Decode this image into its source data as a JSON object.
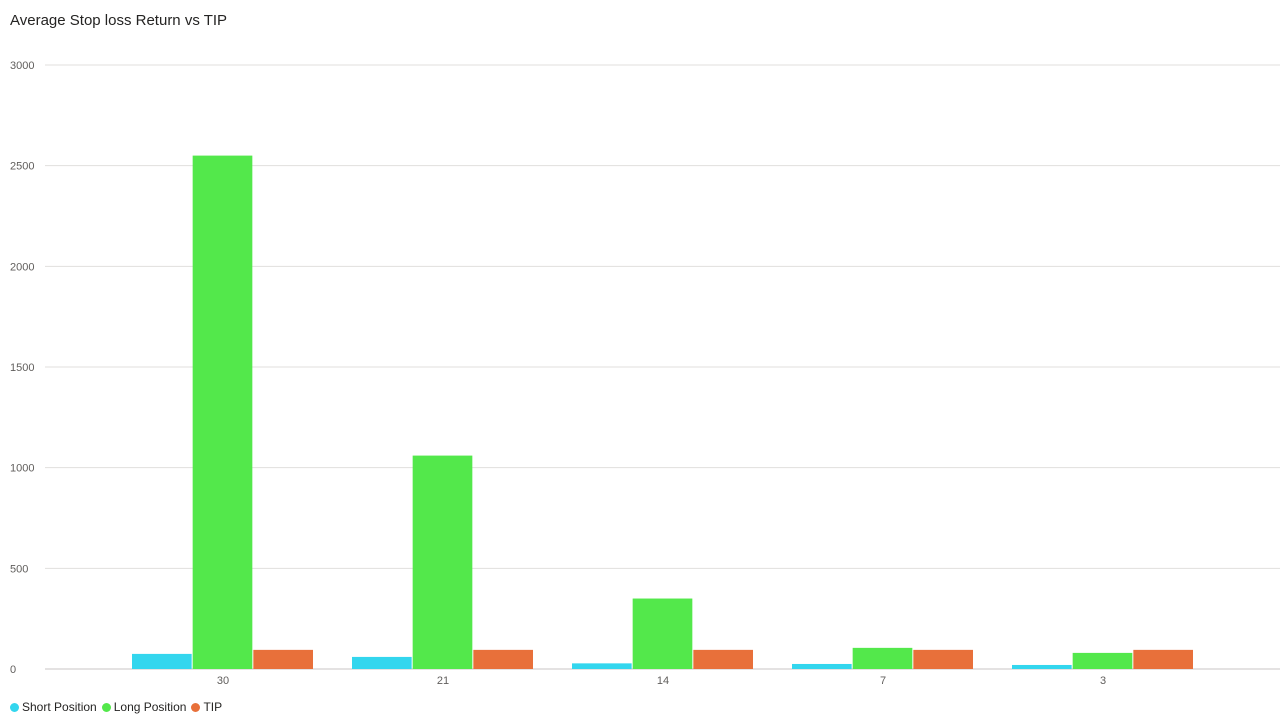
{
  "chart_data": {
    "type": "bar",
    "title": "Average Stop loss Return vs TIP",
    "xlabel": "",
    "ylabel": "",
    "categories": [
      "30",
      "21",
      "14",
      "7",
      "3"
    ],
    "ylim": [
      0,
      3000
    ],
    "yticks": [
      0,
      500,
      1000,
      1500,
      2000,
      2500,
      3000
    ],
    "grid": true,
    "legend_position": "bottom-left",
    "series": [
      {
        "name": "Short Position",
        "color": "#33d6ee",
        "values": [
          75,
          60,
          28,
          25,
          20
        ]
      },
      {
        "name": "Long Position",
        "color": "#53e84b",
        "values": [
          2550,
          1060,
          350,
          105,
          80
        ]
      },
      {
        "name": "TIP",
        "color": "#e8703a",
        "values": [
          95,
          95,
          95,
          95,
          95
        ]
      }
    ]
  }
}
